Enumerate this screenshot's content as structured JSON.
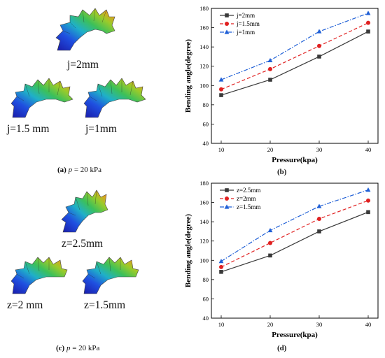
{
  "figure": {
    "panel_a": {
      "sims": [
        "j=2mm",
        "j=1.5 mm",
        "j=1mm"
      ],
      "caption_prefix": "(a)",
      "caption_var": "p",
      "caption_rest": " = 20 kPa"
    },
    "panel_c": {
      "sims": [
        "z=2.5mm",
        "z=2 mm",
        "z=1.5mm"
      ],
      "caption_prefix": "(c)",
      "caption_var": "p",
      "caption_rest": " = 20 kPa"
    },
    "panel_b_label": "(b)",
    "panel_d_label": "(d)"
  },
  "chart_data": [
    {
      "type": "line",
      "panel": "(b)",
      "x": [
        10,
        20,
        30,
        40
      ],
      "xlabel": "Pressure(kpa)",
      "ylabel": "Bending angle(degree)",
      "xticks": [
        "10",
        "20",
        "30",
        "40"
      ],
      "yticks": [
        "40",
        "60",
        "80",
        "100",
        "120",
        "140",
        "160",
        "180"
      ],
      "ylim": [
        40,
        180
      ],
      "legend_position": "top-left",
      "series": [
        {
          "name": "j=2mm",
          "values": [
            90,
            106,
            130,
            156
          ],
          "color": "#3a3a3a",
          "marker": "square",
          "dash": "solid"
        },
        {
          "name": "j=1.5mm",
          "values": [
            96,
            117,
            141,
            165
          ],
          "color": "#e02020",
          "marker": "circle",
          "dash": "dash"
        },
        {
          "name": "j=1mm",
          "values": [
            106,
            126,
            156,
            175
          ],
          "color": "#1f5fd6",
          "marker": "triangle",
          "dash": "dashdot"
        }
      ]
    },
    {
      "type": "line",
      "panel": "(d)",
      "x": [
        10,
        20,
        30,
        40
      ],
      "xlabel": "Pressure(kpa)",
      "ylabel": "Bending angle(degree)",
      "xticks": [
        "10",
        "20",
        "30",
        "40"
      ],
      "yticks": [
        "40",
        "60",
        "80",
        "100",
        "120",
        "140",
        "160",
        "180"
      ],
      "ylim": [
        40,
        180
      ],
      "legend_position": "top-left",
      "series": [
        {
          "name": "z=2.5mm",
          "values": [
            88,
            105,
            130,
            150
          ],
          "color": "#3a3a3a",
          "marker": "square",
          "dash": "solid"
        },
        {
          "name": "z=2mm",
          "values": [
            93,
            118,
            143,
            162
          ],
          "color": "#e02020",
          "marker": "circle",
          "dash": "dash"
        },
        {
          "name": "z=1.5mm",
          "values": [
            99,
            131,
            156,
            173
          ],
          "color": "#1f5fd6",
          "marker": "triangle",
          "dash": "dashdot"
        }
      ]
    }
  ]
}
